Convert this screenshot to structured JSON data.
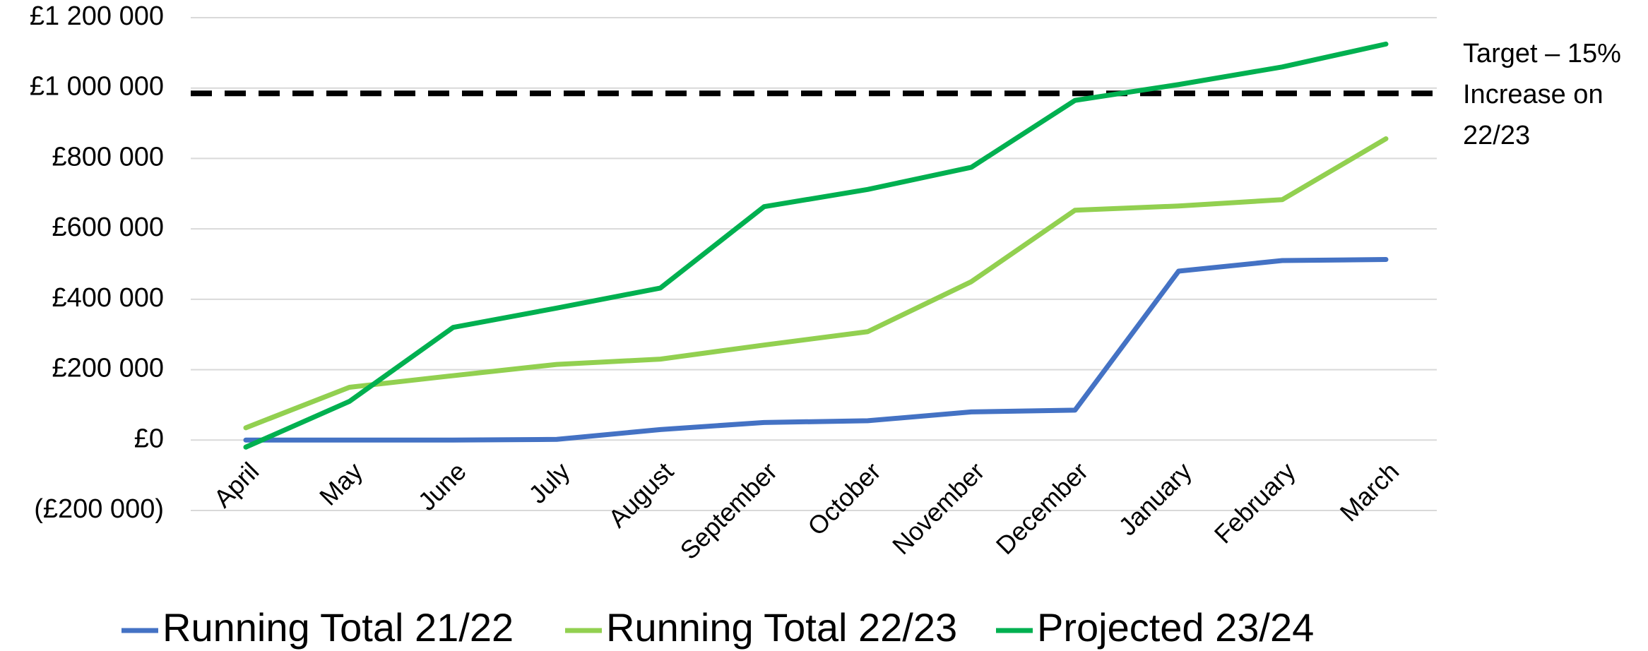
{
  "chart_data": {
    "type": "line",
    "categories": [
      "April",
      "May",
      "June",
      "July",
      "August",
      "September",
      "October",
      "November",
      "December",
      "January",
      "February",
      "March"
    ],
    "series": [
      {
        "name": "Running Total 21/22",
        "color": "#4472c4",
        "values": [
          0,
          0,
          0,
          2000,
          30000,
          50000,
          55000,
          80000,
          85000,
          480000,
          510000,
          513000
        ]
      },
      {
        "name": "Running Total 22/23",
        "color": "#92d050",
        "values": [
          35000,
          150000,
          183000,
          215000,
          230000,
          270000,
          308000,
          450000,
          653000,
          665000,
          683000,
          856000
        ]
      },
      {
        "name": "Projected 23/24",
        "color": "#00b050",
        "values": [
          -20000,
          110000,
          320000,
          375000,
          432000,
          663000,
          712000,
          775000,
          965000,
          1010000,
          1060000,
          1125000
        ]
      }
    ],
    "target": 985000,
    "annotation": [
      "Target – 15%",
      "Increase on",
      "22/23"
    ],
    "ylim": [
      -200000,
      1200000
    ],
    "yticks": [
      {
        "value": -200000,
        "label": "(£200 000)"
      },
      {
        "value": 0,
        "label": "£0"
      },
      {
        "value": 200000,
        "label": "£200 000"
      },
      {
        "value": 400000,
        "label": "£400 000"
      },
      {
        "value": 600000,
        "label": "£600 000"
      },
      {
        "value": 800000,
        "label": "£800 000"
      },
      {
        "value": 1000000,
        "label": "£1 000 000"
      },
      {
        "value": 1200000,
        "label": "£1 200 000"
      }
    ],
    "grid": true,
    "legend": "bottom"
  }
}
